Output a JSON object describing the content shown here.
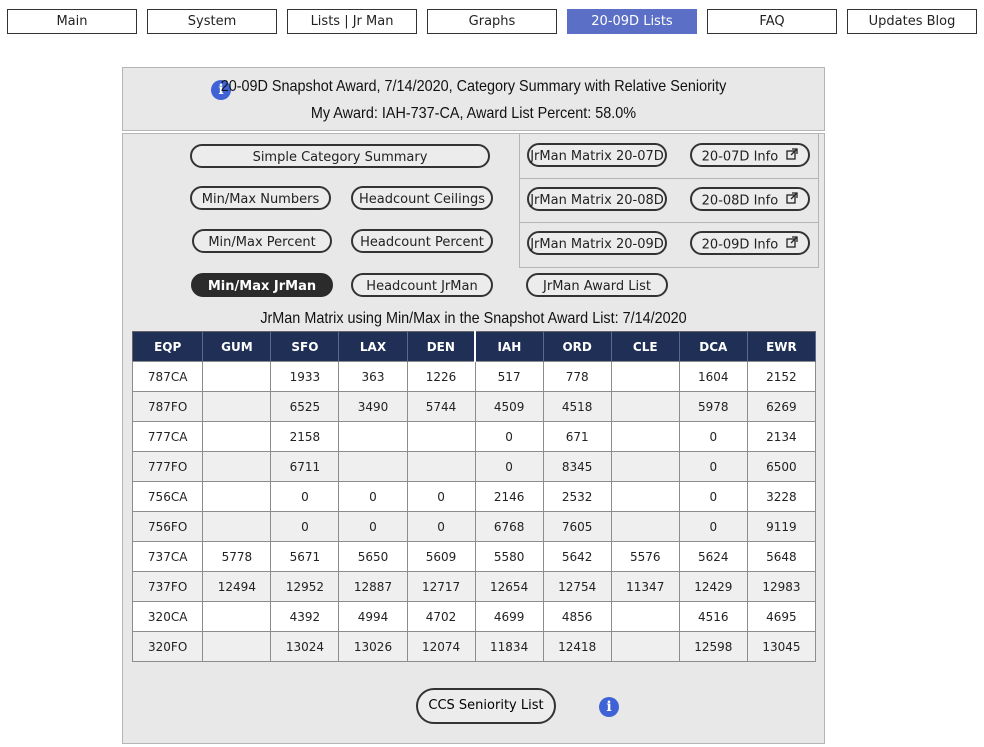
{
  "nav": {
    "items": [
      "Main",
      "System",
      "Lists | Jr Man",
      "Graphs",
      "20-09D Lists",
      "FAQ",
      "Updates Blog"
    ],
    "active_index": 4
  },
  "header": {
    "line1": "20-09D Snapshot Award, 7/14/2020, Category Summary with Relative Seniority",
    "line2": "My Award: IAH-737-CA, Award List Percent: 58.0%",
    "info_icon": "info-circle-icon"
  },
  "buttons": {
    "simple_category_summary": "Simple Category Summary",
    "min_max_numbers": "Min/Max Numbers",
    "headcount_ceilings": "Headcount Ceilings",
    "min_max_percent": "Min/Max Percent",
    "headcount_percent": "Headcount Percent",
    "min_max_jrman": "Min/Max JrMan",
    "headcount_jrman": "Headcount JrMan",
    "jrman_award_list": "JrMan Award List",
    "jrman_matrix_07d": "JrMan Matrix 20-07D",
    "jrman_matrix_08d": "JrMan Matrix 20-08D",
    "jrman_matrix_09d": "JrMan Matrix 20-09D",
    "info_07d": "20-07D Info",
    "info_08d": "20-08D Info",
    "info_09d": "20-09D Info",
    "ccs_seniority_list": "CCS Seniority List"
  },
  "table": {
    "title": "JrMan Matrix using Min/Max in the Snapshot Award List: 7/14/2020",
    "columns": [
      "EQP",
      "GUM",
      "SFO",
      "LAX",
      "DEN",
      "IAH",
      "ORD",
      "CLE",
      "DCA",
      "EWR"
    ],
    "rows": [
      [
        "787CA",
        "",
        "1933",
        "363",
        "1226",
        "517",
        "778",
        "",
        "1604",
        "2152"
      ],
      [
        "787FO",
        "",
        "6525",
        "3490",
        "5744",
        "4509",
        "4518",
        "",
        "5978",
        "6269"
      ],
      [
        "777CA",
        "",
        "2158",
        "",
        "",
        "0",
        "671",
        "",
        "0",
        "2134"
      ],
      [
        "777FO",
        "",
        "6711",
        "",
        "",
        "0",
        "8345",
        "",
        "0",
        "6500"
      ],
      [
        "756CA",
        "",
        "0",
        "0",
        "0",
        "2146",
        "2532",
        "",
        "0",
        "3228"
      ],
      [
        "756FO",
        "",
        "0",
        "0",
        "0",
        "6768",
        "7605",
        "",
        "0",
        "9119"
      ],
      [
        "737CA",
        "5778",
        "5671",
        "5650",
        "5609",
        "5580",
        "5642",
        "5576",
        "5624",
        "5648"
      ],
      [
        "737FO",
        "12494",
        "12952",
        "12887",
        "12717",
        "12654",
        "12754",
        "11347",
        "12429",
        "12983"
      ],
      [
        "320CA",
        "",
        "4392",
        "4994",
        "4702",
        "4699",
        "4856",
        "",
        "4516",
        "4695"
      ],
      [
        "320FO",
        "",
        "13024",
        "13026",
        "12074",
        "11834",
        "12418",
        "",
        "12598",
        "13045"
      ]
    ]
  },
  "colors": {
    "nav_active": "#5b6fc7",
    "table_header": "#1f2f55",
    "info_icon": "#3f63d6",
    "panel_bg": "#e8e8e8"
  }
}
